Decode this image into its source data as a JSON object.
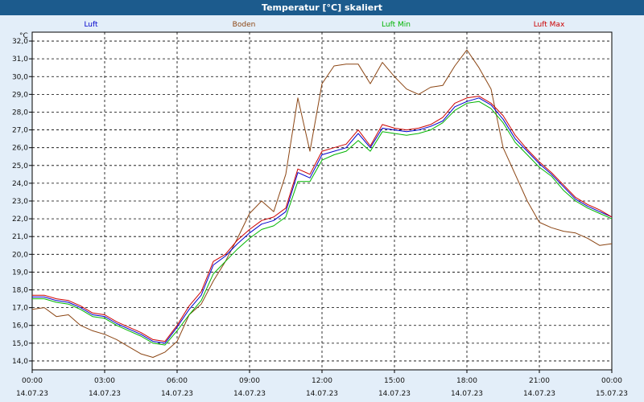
{
  "window": {
    "title": "Temperatur [°C] skaliert"
  },
  "chart_data": {
    "type": "line",
    "title": "Temperatur [°C] skaliert",
    "ylabel": "°C",
    "ylim": [
      13.5,
      32.5
    ],
    "y_ticks": [
      "14,0",
      "15,0",
      "16,0",
      "17,0",
      "18,0",
      "19,0",
      "20,0",
      "21,0",
      "22,0",
      "23,0",
      "24,0",
      "25,0",
      "26,0",
      "27,0",
      "28,0",
      "29,0",
      "30,0",
      "31,0",
      "32,0"
    ],
    "x_ticks": [
      {
        "time": "00:00",
        "date": "14.07.23"
      },
      {
        "time": "03:00",
        "date": "14.07.23"
      },
      {
        "time": "06:00",
        "date": "14.07.23"
      },
      {
        "time": "09:00",
        "date": "14.07.23"
      },
      {
        "time": "12:00",
        "date": "14.07.23"
      },
      {
        "time": "15:00",
        "date": "14.07.23"
      },
      {
        "time": "18:00",
        "date": "14.07.23"
      },
      {
        "time": "21:00",
        "date": "14.07.23"
      },
      {
        "time": "00:00",
        "date": "15.07.23"
      }
    ],
    "x_unit": "hours since 00:00 14.07.23",
    "grid": true,
    "legend_position": "top",
    "series": [
      {
        "name": "Luft",
        "color": "#0000cc",
        "x": [
          0,
          0.5,
          1,
          1.5,
          2,
          2.5,
          3,
          3.5,
          4,
          4.5,
          5,
          5.5,
          6,
          6.5,
          7,
          7.5,
          8,
          8.5,
          9,
          9.5,
          10,
          10.5,
          11,
          11.5,
          12,
          12.5,
          13,
          13.5,
          14,
          14.5,
          15,
          15.5,
          16,
          16.5,
          17,
          17.5,
          18,
          18.5,
          19,
          19.5,
          20,
          20.5,
          21,
          21.5,
          22,
          22.5,
          23,
          23.5,
          24
        ],
        "values": [
          17.6,
          17.6,
          17.4,
          17.3,
          17.0,
          16.6,
          16.5,
          16.1,
          15.8,
          15.5,
          15.1,
          15.0,
          15.9,
          16.9,
          17.7,
          19.4,
          19.9,
          20.6,
          21.2,
          21.7,
          21.9,
          22.4,
          24.6,
          24.3,
          25.6,
          25.8,
          26.0,
          26.8,
          26.0,
          27.1,
          27.0,
          26.9,
          27.0,
          27.2,
          27.5,
          28.3,
          28.6,
          28.8,
          28.4,
          27.6,
          26.5,
          25.8,
          25.1,
          24.5,
          23.8,
          23.1,
          22.7,
          22.4,
          22.1
        ]
      },
      {
        "name": "Boden",
        "color": "#8b4513",
        "x": [
          0,
          0.5,
          1,
          1.5,
          2,
          2.5,
          3,
          3.5,
          4,
          4.5,
          5,
          5.5,
          6,
          6.5,
          7,
          7.5,
          8,
          8.5,
          9,
          9.5,
          10,
          10.5,
          11,
          11.5,
          12,
          12.5,
          13,
          13.5,
          14,
          14.5,
          15,
          15.5,
          16,
          16.5,
          17,
          17.5,
          18,
          18.5,
          19,
          19.5,
          20,
          20.5,
          21,
          21.5,
          22,
          22.5,
          23,
          23.5,
          24
        ],
        "values": [
          16.9,
          17.0,
          16.5,
          16.6,
          16.0,
          15.7,
          15.5,
          15.2,
          14.8,
          14.4,
          14.2,
          14.5,
          15.1,
          16.6,
          17.2,
          18.5,
          19.6,
          20.9,
          22.3,
          23.0,
          22.4,
          24.5,
          28.8,
          25.8,
          29.6,
          30.6,
          30.7,
          30.7,
          29.6,
          30.8,
          30.0,
          29.3,
          29.0,
          29.4,
          29.5,
          30.6,
          31.5,
          30.5,
          29.3,
          26.0,
          24.5,
          23.0,
          21.8,
          21.5,
          21.3,
          21.2,
          20.9,
          20.5,
          20.6
        ]
      },
      {
        "name": "Luft Min",
        "color": "#00b400",
        "x": [
          0,
          0.5,
          1,
          1.5,
          2,
          2.5,
          3,
          3.5,
          4,
          4.5,
          5,
          5.5,
          6,
          6.5,
          7,
          7.5,
          8,
          8.5,
          9,
          9.5,
          10,
          10.5,
          11,
          11.5,
          12,
          12.5,
          13,
          13.5,
          14,
          14.5,
          15,
          15.5,
          16,
          16.5,
          17,
          17.5,
          18,
          18.5,
          19,
          19.5,
          20,
          20.5,
          21,
          21.5,
          22,
          22.5,
          23,
          23.5,
          24
        ],
        "values": [
          17.5,
          17.5,
          17.3,
          17.2,
          16.9,
          16.5,
          16.4,
          16.0,
          15.7,
          15.4,
          15.0,
          14.9,
          15.7,
          16.6,
          17.4,
          18.9,
          19.6,
          20.3,
          20.9,
          21.4,
          21.6,
          22.1,
          24.1,
          24.1,
          25.3,
          25.6,
          25.8,
          26.4,
          25.8,
          26.9,
          26.8,
          26.7,
          26.8,
          27.0,
          27.4,
          28.1,
          28.5,
          28.6,
          28.2,
          27.4,
          26.3,
          25.6,
          24.9,
          24.4,
          23.6,
          23.0,
          22.6,
          22.3,
          22.0
        ]
      },
      {
        "name": "Luft Max",
        "color": "#cc0000",
        "x": [
          0,
          0.5,
          1,
          1.5,
          2,
          2.5,
          3,
          3.5,
          4,
          4.5,
          5,
          5.5,
          6,
          6.5,
          7,
          7.5,
          8,
          8.5,
          9,
          9.5,
          10,
          10.5,
          11,
          11.5,
          12,
          12.5,
          13,
          13.5,
          14,
          14.5,
          15,
          15.5,
          16,
          16.5,
          17,
          17.5,
          18,
          18.5,
          19,
          19.5,
          20,
          20.5,
          21,
          21.5,
          22,
          22.5,
          23,
          23.5,
          24
        ],
        "values": [
          17.7,
          17.7,
          17.5,
          17.4,
          17.1,
          16.7,
          16.6,
          16.2,
          15.9,
          15.6,
          15.2,
          15.1,
          16.0,
          17.1,
          17.9,
          19.6,
          20.0,
          20.8,
          21.4,
          21.9,
          22.1,
          22.6,
          24.8,
          24.5,
          25.8,
          26.0,
          26.2,
          27.0,
          26.1,
          27.3,
          27.1,
          27.0,
          27.1,
          27.3,
          27.7,
          28.5,
          28.8,
          28.9,
          28.5,
          27.8,
          26.7,
          25.9,
          25.2,
          24.6,
          23.9,
          23.2,
          22.8,
          22.5,
          22.1
        ]
      }
    ]
  }
}
